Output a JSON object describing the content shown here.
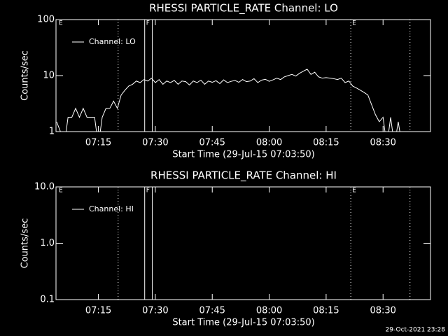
{
  "chart_data": [
    {
      "type": "line",
      "title": "RHESSI PARTICLE_RATE Channel: LO",
      "x_label": "Start Time (29-Jul-15 07:03:50)",
      "y_label": "Counts/sec",
      "xlim": [
        423.83,
        522.5
      ],
      "ylim": [
        1,
        100
      ],
      "log_y": true,
      "legend": "upper left",
      "xticks": [
        {
          "value": 435,
          "label": "07:15"
        },
        {
          "value": 450,
          "label": "07:30"
        },
        {
          "value": 465,
          "label": "07:45"
        },
        {
          "value": 480,
          "label": "08:00"
        },
        {
          "value": 495,
          "label": "08:15"
        },
        {
          "value": 510,
          "label": "08:30"
        }
      ],
      "yticks": [
        1,
        10,
        100
      ],
      "markers": [
        {
          "x": 424.2,
          "label": "E"
        },
        {
          "x": 440.2,
          "style": "dotted"
        },
        {
          "x": 447.2,
          "style": "solid",
          "label": "F"
        },
        {
          "x": 449.2,
          "style": "solid"
        },
        {
          "x": 501.5,
          "style": "dotted",
          "label": "E"
        },
        {
          "x": 517.1,
          "style": "dotted"
        }
      ],
      "x": [
        424,
        425,
        426,
        427,
        428,
        429,
        430,
        431,
        432,
        433,
        434,
        435,
        436,
        437,
        438,
        439,
        440,
        441,
        442,
        443,
        444,
        445,
        446,
        447,
        448,
        449,
        450,
        451,
        452,
        453,
        454,
        455,
        456,
        457,
        458,
        459,
        460,
        461,
        462,
        463,
        464,
        465,
        466,
        467,
        468,
        469,
        470,
        471,
        472,
        473,
        474,
        475,
        476,
        477,
        478,
        479,
        480,
        481,
        482,
        483,
        484,
        485,
        486,
        487,
        488,
        489,
        490,
        491,
        492,
        493,
        494,
        495,
        496,
        497,
        498,
        499,
        500,
        501,
        502,
        503,
        504,
        505,
        506,
        507,
        508,
        509,
        510,
        511,
        512,
        513,
        514,
        515
      ],
      "series": [
        {
          "name": "Channel: LO",
          "color": "#ffffff",
          "values": [
            1.5,
            1,
            0,
            1.8,
            1.8,
            2.6,
            1.8,
            2.6,
            1.8,
            1.8,
            1.8,
            0,
            1.8,
            2.6,
            2.6,
            3.5,
            2.6,
            4.5,
            5.5,
            6.5,
            7,
            8,
            7.5,
            8.5,
            8,
            9,
            7.5,
            8.5,
            7,
            8,
            7.5,
            8.2,
            7,
            8,
            7.8,
            6.8,
            8,
            7.5,
            8.3,
            7,
            8,
            7.6,
            8.1,
            7.2,
            8.4,
            7.5,
            7.9,
            8.2,
            7.6,
            8.5,
            7.8,
            8,
            8.8,
            7.5,
            8.3,
            8.6,
            7.9,
            8.4,
            9,
            8.5,
            9.5,
            10,
            10.5,
            9.8,
            11,
            12,
            13,
            10.5,
            11.5,
            9.5,
            9,
            9.2,
            9,
            8.8,
            8.5,
            9,
            7.5,
            8,
            6.5,
            6,
            5.5,
            5,
            4.5,
            3,
            2,
            1.5,
            1.8,
            0,
            1.8,
            0,
            1.5,
            0
          ]
        }
      ]
    },
    {
      "type": "line",
      "title": "RHESSI PARTICLE_RATE Channel: HI",
      "x_label": "Start Time (29-Jul-15 07:03:50)",
      "y_label": "Counts/sec",
      "xlim": [
        423.83,
        522.5
      ],
      "ylim": [
        0.1,
        10
      ],
      "log_y": true,
      "legend": "upper left",
      "xticks": [
        {
          "value": 435,
          "label": "07:15"
        },
        {
          "value": 450,
          "label": "07:30"
        },
        {
          "value": 465,
          "label": "07:45"
        },
        {
          "value": 480,
          "label": "08:00"
        },
        {
          "value": 495,
          "label": "08:15"
        },
        {
          "value": 510,
          "label": "08:30"
        }
      ],
      "yticks": [
        0.1,
        {
          "value": 1,
          "label": "1.0"
        },
        {
          "value": 10,
          "label": "10.0"
        }
      ],
      "markers": [
        {
          "x": 424.2,
          "label": "E"
        },
        {
          "x": 440.2,
          "style": "dotted"
        },
        {
          "x": 447.2,
          "style": "solid",
          "label": "F"
        },
        {
          "x": 449.2,
          "style": "solid"
        },
        {
          "x": 501.5,
          "style": "dotted",
          "label": "E"
        },
        {
          "x": 517.1,
          "style": "dotted"
        }
      ],
      "x": [],
      "series": [
        {
          "name": "Channel: HI",
          "color": "#ffffff",
          "values": []
        }
      ]
    }
  ],
  "footer": "29-Oct-2021 23:28"
}
